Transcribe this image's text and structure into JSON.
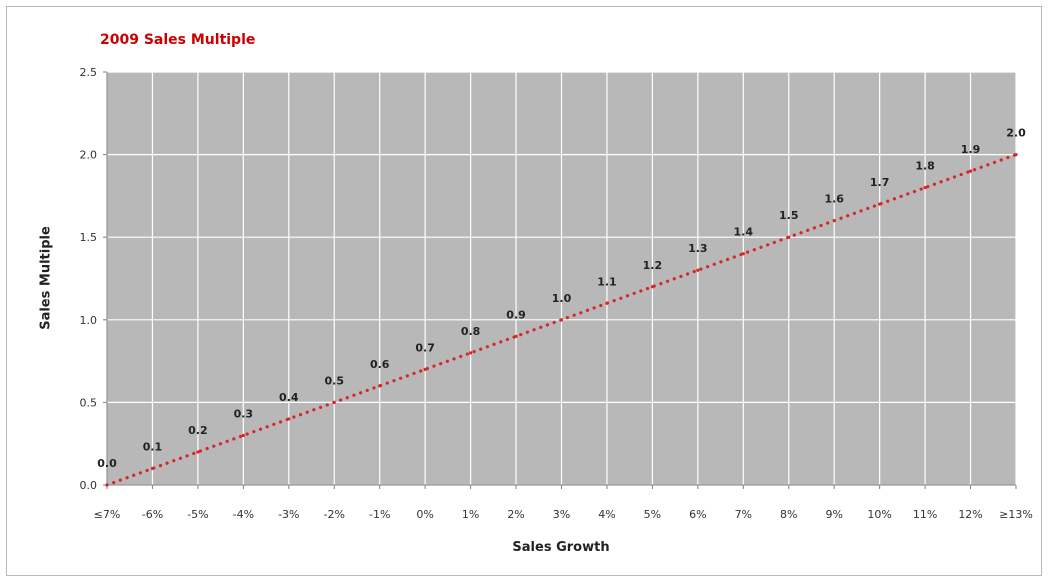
{
  "chart_data": {
    "type": "line",
    "title": "2009 Sales Multiple",
    "xlabel": "Sales Growth",
    "ylabel": "Sales Multiple",
    "categories": [
      "≤7%",
      "-6%",
      "-5%",
      "-4%",
      "-3%",
      "-2%",
      "-1%",
      "0%",
      "1%",
      "2%",
      "3%",
      "4%",
      "5%",
      "6%",
      "7%",
      "8%",
      "9%",
      "10%",
      "11%",
      "12%",
      "≥13%"
    ],
    "values": [
      0.0,
      0.1,
      0.2,
      0.3,
      0.4,
      0.5,
      0.6,
      0.7,
      0.8,
      0.9,
      1.0,
      1.1,
      1.2,
      1.3,
      1.4,
      1.5,
      1.6,
      1.7,
      1.8,
      1.9,
      2.0
    ],
    "data_labels": [
      "0.0",
      "0.1",
      "0.2",
      "0.3",
      "0.4",
      "0.5",
      "0.6",
      "0.7",
      "0.8",
      "0.9",
      "1.0",
      "1.1",
      "1.2",
      "1.3",
      "1.4",
      "1.5",
      "1.6",
      "1.7",
      "1.8",
      "1.9",
      "2.0"
    ],
    "yticks": [
      0.0,
      0.5,
      1.0,
      1.5,
      2.0,
      2.5
    ],
    "ytick_labels": [
      "0.0",
      "0.5",
      "1.0",
      "1.5",
      "2.0",
      "2.5"
    ],
    "ylim": [
      0,
      2.5
    ],
    "grid": true,
    "legend": "none",
    "line_style": "dotted",
    "line_color": "#d9252a",
    "title_color": "#cc0000",
    "plot_background": "#b8b8b8",
    "grid_color": "#ffffff"
  }
}
